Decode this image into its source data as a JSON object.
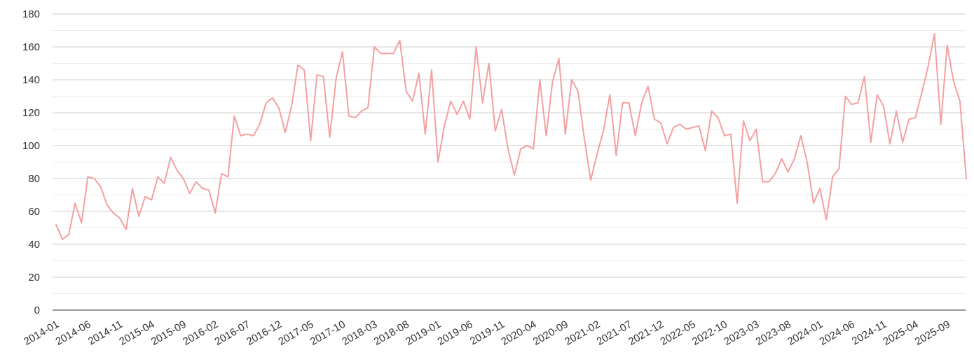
{
  "chart_data": {
    "type": "line",
    "title": "",
    "xlabel": "",
    "ylabel": "",
    "ylim": [
      0,
      180
    ],
    "yticks": [
      0,
      20,
      40,
      60,
      80,
      100,
      120,
      140,
      160,
      180
    ],
    "ytick_labels": [
      "0",
      "20",
      "40",
      "60",
      "80",
      "100",
      "120",
      "140",
      "160",
      "180"
    ],
    "grid": true,
    "minor_grid": true,
    "legend": "none",
    "color": "#f4a0a0",
    "x_start": "2014-01",
    "xtick_labels": [
      "2014-01",
      "2014-06",
      "2014-11",
      "2015-04",
      "2015-09",
      "2016-02",
      "2016-07",
      "2016-12",
      "2017-05",
      "2017-10",
      "2018-03",
      "2018-08",
      "2019-01",
      "2019-06",
      "2019-11",
      "2020-04",
      "2020-09",
      "2021-02",
      "2021-07",
      "2021-12",
      "2022-05",
      "2022-10",
      "2023-03",
      "2023-08",
      "2024-01",
      "2024-06",
      "2024-11",
      "2025-04",
      "2025-09"
    ],
    "values": [
      52,
      43,
      46,
      65,
      53,
      81,
      80,
      75,
      64,
      59,
      56,
      49,
      74,
      57,
      69,
      67,
      81,
      77,
      93,
      85,
      80,
      71,
      78,
      74,
      73,
      59,
      83,
      81,
      118,
      106,
      107,
      106,
      113,
      126,
      129,
      123,
      108,
      124,
      149,
      146,
      103,
      143,
      142,
      105,
      141,
      157,
      118,
      117,
      121,
      123,
      160,
      156,
      156,
      156,
      164,
      133,
      127,
      144,
      107,
      146,
      90,
      112,
      127,
      119,
      127,
      116,
      160,
      126,
      150,
      109,
      122,
      98,
      82,
      98,
      100,
      98,
      140,
      106,
      139,
      153,
      107,
      140,
      133,
      104,
      79,
      95,
      109,
      131,
      94,
      126,
      126,
      106,
      126,
      136,
      116,
      114,
      101,
      111,
      113,
      110,
      111,
      112,
      97,
      121,
      117,
      106,
      107,
      65,
      115,
      103,
      110,
      78,
      78,
      83,
      92,
      84,
      92,
      106,
      90,
      65,
      74,
      55,
      81,
      86,
      130,
      125,
      126,
      142,
      102,
      131,
      124,
      101,
      121,
      102,
      116,
      117,
      132,
      148,
      168,
      113,
      161,
      139,
      127,
      80
    ]
  }
}
